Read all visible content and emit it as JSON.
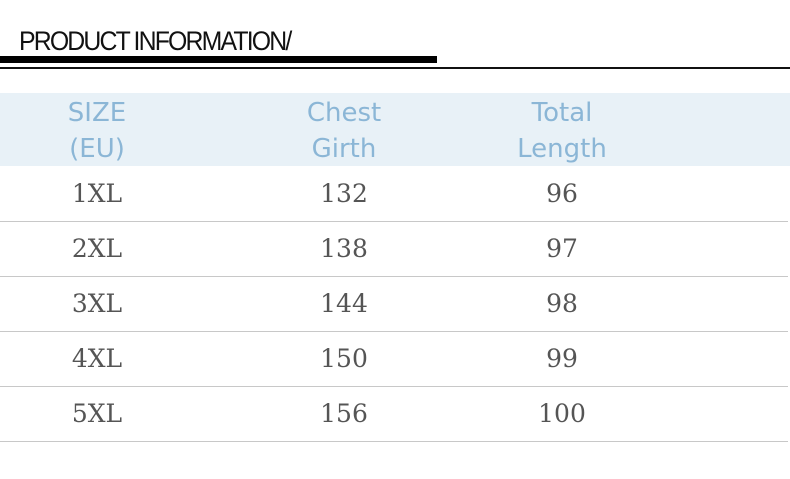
{
  "title": "PRODUCT INFORMATION/",
  "headers": [
    [
      "SIZE",
      "(EU)"
    ],
    [
      "Chest",
      "Girth"
    ],
    [
      "Total",
      "Length"
    ]
  ],
  "rows": [
    [
      "1XL",
      "132",
      "96"
    ],
    [
      "2XL",
      "138",
      "97"
    ],
    [
      "3XL",
      "144",
      "98"
    ],
    [
      "4XL",
      "150",
      "99"
    ],
    [
      "5XL",
      "156",
      "100"
    ]
  ],
  "colors": {
    "header_bg": "#e8f1f7",
    "header_text": "#8bb6d6"
  }
}
